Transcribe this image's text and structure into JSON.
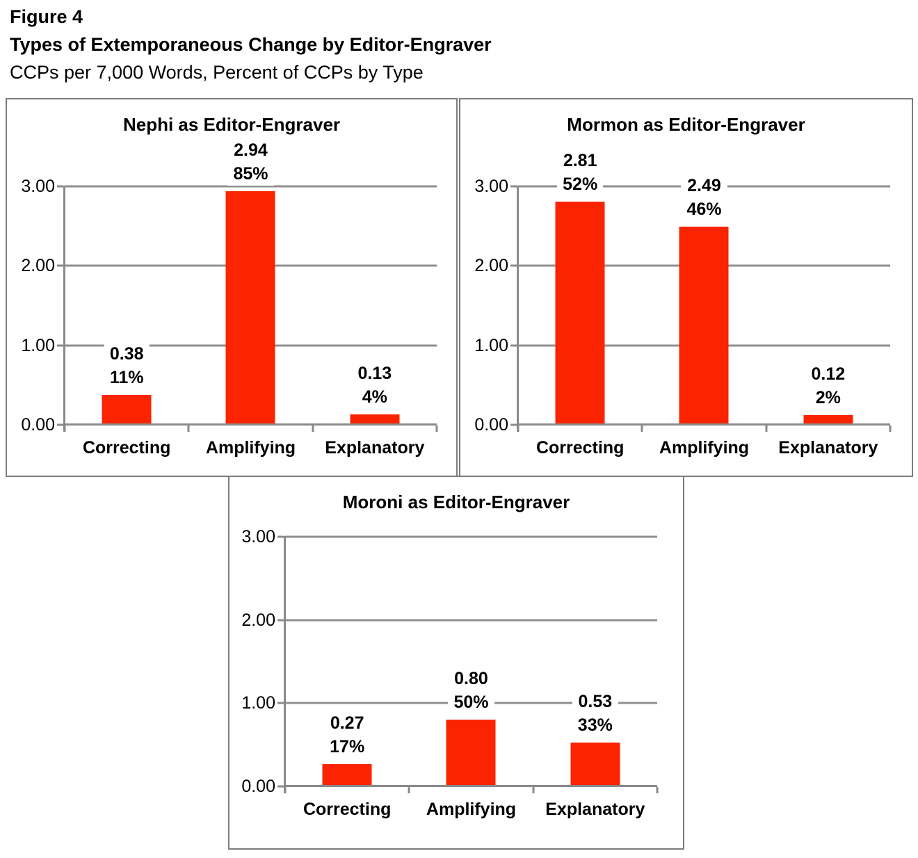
{
  "header": {
    "figure_label": "Figure 4",
    "title": "Types of Extemporaneous Change by Editor-Engraver",
    "subtitle": "CCPs per 7,000 Words, Percent of CCPs by Type"
  },
  "colors": {
    "bar_fill": "#fc2301",
    "gridline": "#8f8f8f",
    "axis": "#8a8a8a",
    "panel_border": "#7d7d7d",
    "text": "#000000"
  },
  "chart_data": [
    {
      "type": "bar",
      "title": "Nephi as Editor-Engraver",
      "categories": [
        "Correcting",
        "Amplifying",
        "Explanatory"
      ],
      "values": [
        0.38,
        2.94,
        0.13
      ],
      "value_labels": [
        "0.38",
        "2.94",
        "0.13"
      ],
      "percent_labels": [
        "11%",
        "85%",
        "4%"
      ],
      "xlabel": "",
      "ylabel": "",
      "ylim": [
        0,
        3
      ],
      "yticks": [
        {
          "value": 0,
          "label": "0.00"
        },
        {
          "value": 1,
          "label": "1.00"
        },
        {
          "value": 2,
          "label": "2.00"
        },
        {
          "value": 3,
          "label": "3.00"
        }
      ],
      "grid": true,
      "legend": false
    },
    {
      "type": "bar",
      "title": "Mormon as Editor-Engraver",
      "categories": [
        "Correcting",
        "Amplifying",
        "Explanatory"
      ],
      "values": [
        2.81,
        2.49,
        0.12
      ],
      "value_labels": [
        "2.81",
        "2.49",
        "0.12"
      ],
      "percent_labels": [
        "52%",
        "46%",
        "2%"
      ],
      "xlabel": "",
      "ylabel": "",
      "ylim": [
        0,
        3
      ],
      "yticks": [
        {
          "value": 0,
          "label": "0.00"
        },
        {
          "value": 1,
          "label": "1.00"
        },
        {
          "value": 2,
          "label": "2.00"
        },
        {
          "value": 3,
          "label": "3.00"
        }
      ],
      "grid": true,
      "legend": false
    },
    {
      "type": "bar",
      "title": "Moroni as Editor-Engraver",
      "categories": [
        "Correcting",
        "Amplifying",
        "Explanatory"
      ],
      "values": [
        0.27,
        0.8,
        0.53
      ],
      "value_labels": [
        "0.27",
        "0.80",
        "0.53"
      ],
      "percent_labels": [
        "17%",
        "50%",
        "33%"
      ],
      "xlabel": "",
      "ylabel": "",
      "ylim": [
        0,
        3
      ],
      "yticks": [
        {
          "value": 0,
          "label": "0.00"
        },
        {
          "value": 1,
          "label": "1.00"
        },
        {
          "value": 2,
          "label": "2.00"
        },
        {
          "value": 3,
          "label": "3.00"
        }
      ],
      "grid": true,
      "legend": false
    }
  ]
}
